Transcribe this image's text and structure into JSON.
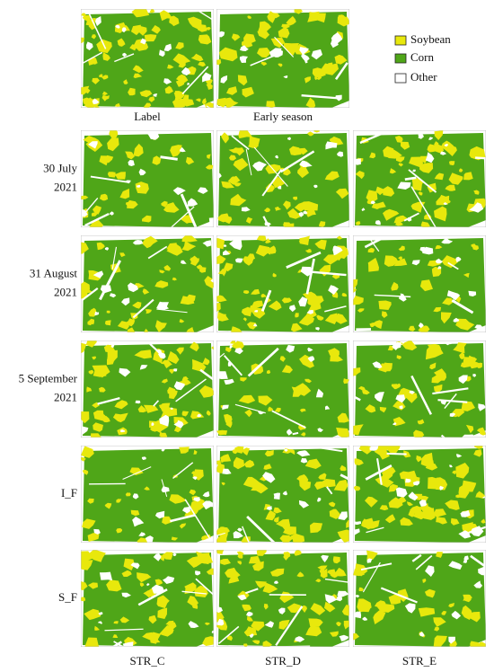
{
  "legend": [
    {
      "label": "Soybean",
      "color": "#e8e80c"
    },
    {
      "label": "Corn",
      "color": "#4fa618"
    },
    {
      "label": "Other",
      "color": "#ffffff"
    }
  ],
  "top_row": [
    "Label",
    "Early season"
  ],
  "rows": [
    {
      "label": [
        "30 July",
        "2021"
      ]
    },
    {
      "label": [
        "31 August",
        "2021"
      ]
    },
    {
      "label": [
        "5 September",
        "2021"
      ]
    },
    {
      "label": [
        "I_F"
      ]
    },
    {
      "label": [
        "S_F"
      ]
    }
  ],
  "columns": [
    "STR_C",
    "STR_D",
    "STR_E"
  ]
}
